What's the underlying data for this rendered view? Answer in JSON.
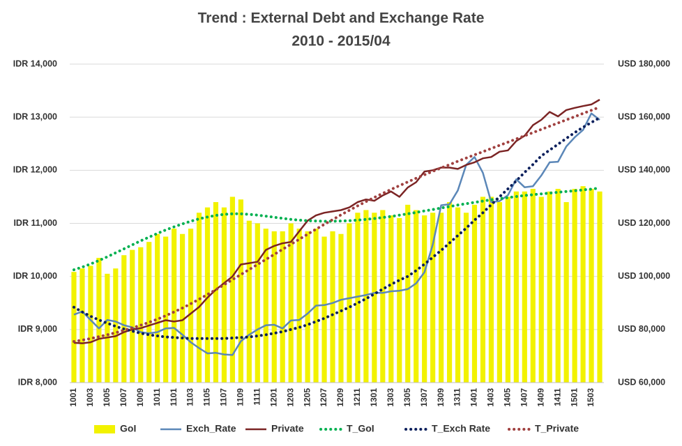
{
  "chart_data": {
    "type": "combo",
    "title": "Trend : External Debt and Exchange Rate",
    "subtitle": "2010 - 2015/04",
    "categories": [
      "1001",
      null,
      "1003",
      null,
      "1005",
      null,
      "1007",
      null,
      "1009",
      null,
      "1011",
      null,
      "1101",
      null,
      "1103",
      null,
      "1105",
      null,
      "1107",
      null,
      "1109",
      null,
      "1111",
      null,
      "1201",
      null,
      "1203",
      null,
      "1205",
      null,
      "1207",
      null,
      "1209",
      null,
      "1211",
      null,
      "1301",
      null,
      "1303",
      null,
      "1305",
      null,
      "1307",
      null,
      "1309",
      null,
      "1311",
      null,
      "1401",
      null,
      "1403",
      null,
      "1405",
      null,
      "1407",
      null,
      "1409",
      null,
      "1411",
      null,
      "1501",
      null,
      "1503",
      null
    ],
    "ylim": [
      8000,
      14000
    ],
    "yticks": [
      {
        "value": 8000,
        "label": "IDR 8,000"
      },
      {
        "value": 9000,
        "label": "IDR 9,000"
      },
      {
        "value": 10000,
        "label": "IDR 10,000"
      },
      {
        "value": 11000,
        "label": "IDR 11,000"
      },
      {
        "value": 12000,
        "label": "IDR 12,000"
      },
      {
        "value": 13000,
        "label": "IDR 13,000"
      },
      {
        "value": 14000,
        "label": "IDR 14,000"
      }
    ],
    "y2lim": [
      60000,
      180000
    ],
    "y2ticks": [
      {
        "value": 60000,
        "label": "USD 60,000"
      },
      {
        "value": 80000,
        "label": "USD 80,000"
      },
      {
        "value": 100000,
        "label": "USD 100,000"
      },
      {
        "value": 120000,
        "label": "USD 120,000"
      },
      {
        "value": 140000,
        "label": "USD 140,000"
      },
      {
        "value": 160000,
        "label": "USD 160,000"
      },
      {
        "value": 180000,
        "label": "USD 180,000"
      }
    ],
    "grid": true,
    "legend": "bottom",
    "series": [
      {
        "name": "GoI",
        "type": "bar",
        "axis": "y2",
        "color": "#f2f200",
        "values": [
          101700,
          103000,
          104000,
          107000,
          101000,
          103000,
          108000,
          110000,
          111000,
          113000,
          116000,
          115000,
          118000,
          116000,
          118000,
          124000,
          126000,
          128000,
          126000,
          130000,
          129000,
          121000,
          120000,
          118000,
          117000,
          117000,
          120000,
          118000,
          117000,
          118000,
          115000,
          117000,
          116000,
          120000,
          124000,
          125000,
          124000,
          125000,
          123000,
          122000,
          127000,
          125000,
          123000,
          124000,
          124000,
          128000,
          126000,
          124000,
          127000,
          130000,
          130000,
          128000,
          130000,
          132000,
          132000,
          133000,
          130000,
          132000,
          133000,
          128000,
          133000,
          134000,
          133000,
          132000
        ]
      },
      {
        "name": "Exch_Rate",
        "type": "line",
        "axis": "y",
        "color": "#5b87b8",
        "values": [
          9280,
          9340,
          9180,
          9020,
          9180,
          9150,
          9080,
          9040,
          8950,
          8930,
          8950,
          9020,
          9030,
          8900,
          8760,
          8650,
          8550,
          8560,
          8530,
          8520,
          8780,
          8900,
          9000,
          9080,
          9090,
          9020,
          9170,
          9180,
          9300,
          9450,
          9460,
          9500,
          9560,
          9590,
          9620,
          9650,
          9690,
          9690,
          9720,
          9730,
          9760,
          9870,
          10080,
          10600,
          11340,
          11360,
          11620,
          12100,
          12250,
          11950,
          11400,
          11420,
          11530,
          11830,
          11680,
          11700,
          11900,
          12150,
          12160,
          12450,
          12620,
          12760,
          13070,
          12950
        ]
      },
      {
        "name": "Private",
        "type": "line",
        "axis": "y2",
        "color": "#7b2424",
        "values": [
          75000,
          74800,
          75200,
          76500,
          77000,
          77500,
          79000,
          80000,
          80500,
          81500,
          82500,
          83500,
          83000,
          83500,
          86000,
          88500,
          92000,
          95000,
          97500,
          100000,
          104500,
          105000,
          105500,
          110000,
          111500,
          112500,
          113000,
          117000,
          121000,
          123000,
          124000,
          124500,
          125000,
          126000,
          128000,
          129000,
          128500,
          130500,
          132000,
          130000,
          133500,
          135500,
          139500,
          140000,
          141000,
          141000,
          140500,
          142000,
          143000,
          144500,
          145000,
          147000,
          147500,
          151000,
          153000,
          157000,
          159000,
          162000,
          160300,
          162700,
          163500,
          164200,
          164800,
          166600
        ]
      },
      {
        "name": "T_GoI",
        "type": "dotted",
        "axis": "y2",
        "color": "#00b050",
        "values": [
          102500,
          103500,
          104700,
          106000,
          107400,
          108900,
          110400,
          111900,
          113400,
          114800,
          116200,
          117500,
          118700,
          119800,
          120800,
          121700,
          122400,
          123000,
          123400,
          123600,
          123600,
          123400,
          123100,
          122700,
          122300,
          121900,
          121500,
          121200,
          121000,
          120900,
          120800,
          120800,
          120900,
          121000,
          121200,
          121500,
          121800,
          122200,
          122600,
          123100,
          123600,
          124100,
          124700,
          125200,
          125800,
          126300,
          126900,
          127400,
          127900,
          128400,
          128900,
          129300,
          129700,
          130100,
          130500,
          130800,
          131100,
          131400,
          131700,
          132000,
          132300,
          132600,
          132900,
          133300
        ]
      },
      {
        "name": "T_Exch Rate",
        "type": "dotted",
        "axis": "y",
        "color": "#0b1f5c",
        "values": [
          9420,
          9330,
          9250,
          9180,
          9120,
          9060,
          9010,
          8970,
          8930,
          8900,
          8880,
          8860,
          8850,
          8840,
          8830,
          8830,
          8830,
          8830,
          8830,
          8840,
          8850,
          8860,
          8880,
          8900,
          8930,
          8960,
          9000,
          9040,
          9090,
          9150,
          9210,
          9280,
          9350,
          9420,
          9500,
          9580,
          9670,
          9760,
          9850,
          9930,
          10000,
          10110,
          10230,
          10360,
          10490,
          10630,
          10770,
          10910,
          11060,
          11200,
          11350,
          11500,
          11650,
          11800,
          11960,
          12110,
          12270,
          12380,
          12490,
          12600,
          12710,
          12810,
          12900,
          12990
        ]
      },
      {
        "name": "T_Private",
        "type": "dotted",
        "axis": "y2",
        "color": "#a0403f",
        "values": [
          75500,
          76000,
          76600,
          77300,
          78000,
          78800,
          79700,
          80600,
          81600,
          82700,
          83900,
          85200,
          86600,
          88100,
          89700,
          91400,
          93200,
          95000,
          96900,
          98800,
          100700,
          102600,
          104500,
          106400,
          108300,
          110200,
          112100,
          114000,
          115900,
          117800,
          119600,
          121400,
          123200,
          124900,
          126600,
          128200,
          129800,
          131300,
          132800,
          134200,
          135600,
          137000,
          138300,
          139600,
          140900,
          142100,
          143400,
          144600,
          145800,
          147000,
          148200,
          149400,
          150600,
          151800,
          153000,
          154200,
          155400,
          156600,
          157800,
          159000,
          160200,
          161400,
          162600,
          163800
        ]
      }
    ]
  }
}
